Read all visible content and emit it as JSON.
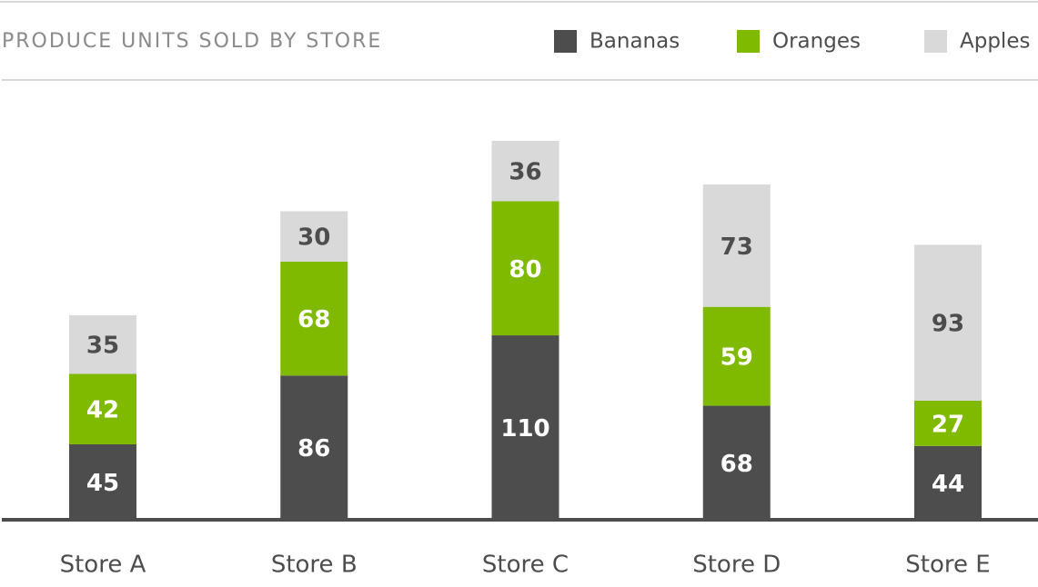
{
  "chart_data": {
    "type": "stacked-bar",
    "title": "PRODUCE UNITS SOLD BY STORE",
    "categories": [
      "Store A",
      "Store B",
      "Store C",
      "Store D",
      "Store E"
    ],
    "series": [
      {
        "name": "Bananas",
        "color": "#4d4d4d",
        "values": [
          45,
          86,
          110,
          68,
          44
        ]
      },
      {
        "name": "Oranges",
        "color": "#7fba00",
        "values": [
          42,
          68,
          80,
          59,
          27
        ]
      },
      {
        "name": "Apples",
        "color": "#d9d9d9",
        "values": [
          35,
          30,
          36,
          73,
          93
        ]
      }
    ]
  }
}
